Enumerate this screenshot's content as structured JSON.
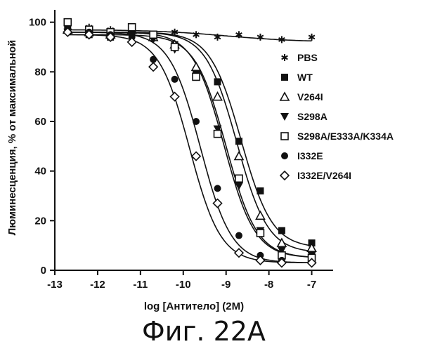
{
  "chart_data": {
    "type": "scatter",
    "title": "",
    "xlabel": "log [Антитело] (2М)",
    "ylabel": "Люминесценция, % от максимальной",
    "caption": "Фиг. 22A",
    "xlim": [
      -13,
      -6.5
    ],
    "ylim": [
      0,
      105
    ],
    "x_ticks": [
      -13,
      -12,
      -11,
      -10,
      -9,
      -8,
      -7
    ],
    "x_tick_labels": [
      "-13",
      "-12",
      "-11",
      "-10",
      "-9",
      "-8",
      "-7"
    ],
    "y_ticks": [
      0,
      20,
      40,
      60,
      80,
      100
    ],
    "y_tick_labels": [
      "0",
      "20",
      "40",
      "60",
      "80",
      "100"
    ],
    "legend_position": "right",
    "grid": false,
    "x": [
      -12.7,
      -12.2,
      -11.7,
      -11.2,
      -10.7,
      -10.2,
      -9.7,
      -9.2,
      -8.7,
      -8.2,
      -7.7,
      -7.0
    ],
    "series": [
      {
        "name": "PBS",
        "marker": "asterisk",
        "values": [
          97,
          98,
          97,
          96,
          95,
          96,
          95,
          94,
          95,
          94,
          93,
          94
        ],
        "curve": {
          "bottom": 92,
          "top": 97,
          "ec50": -9.0,
          "hill": 0.5
        }
      },
      {
        "name": "WT",
        "marker": "filled-square",
        "values": [
          98,
          95,
          94,
          96,
          95,
          91,
          80,
          76,
          52,
          32,
          16,
          11
        ],
        "curve": {
          "bottom": 9,
          "top": 96,
          "ec50": -8.65,
          "hill": 1.2
        }
      },
      {
        "name": "V264I",
        "marker": "open-triangle",
        "values": [
          97,
          96,
          95,
          97,
          94,
          91,
          82,
          70,
          46,
          22,
          11,
          9
        ],
        "curve": {
          "bottom": 7,
          "top": 96,
          "ec50": -8.75,
          "hill": 1.2
        }
      },
      {
        "name": "S298A",
        "marker": "filled-triangle-down",
        "values": [
          96,
          95,
          95,
          95,
          93,
          89,
          78,
          57,
          34,
          16,
          8,
          6
        ],
        "curve": {
          "bottom": 5,
          "top": 95,
          "ec50": -9.0,
          "hill": 1.2
        }
      },
      {
        "name": "S298A/E333A/K334A",
        "marker": "open-square",
        "values": [
          100,
          97,
          96,
          98,
          95,
          90,
          78,
          55,
          37,
          15,
          6,
          5
        ],
        "curve": {
          "bottom": 5,
          "top": 96,
          "ec50": -9.05,
          "hill": 1.2
        }
      },
      {
        "name": "I332E",
        "marker": "filled-circle",
        "values": [
          97,
          96,
          95,
          94,
          85,
          77,
          60,
          33,
          14,
          6,
          4,
          3
        ],
        "curve": {
          "bottom": 3,
          "top": 96,
          "ec50": -9.6,
          "hill": 1.2
        }
      },
      {
        "name": "I332E/V264I",
        "marker": "open-diamond",
        "values": [
          96,
          95,
          94,
          92,
          82,
          70,
          46,
          27,
          7,
          4,
          3,
          3
        ],
        "curve": {
          "bottom": 3,
          "top": 95,
          "ec50": -9.85,
          "hill": 1.2
        }
      }
    ]
  }
}
